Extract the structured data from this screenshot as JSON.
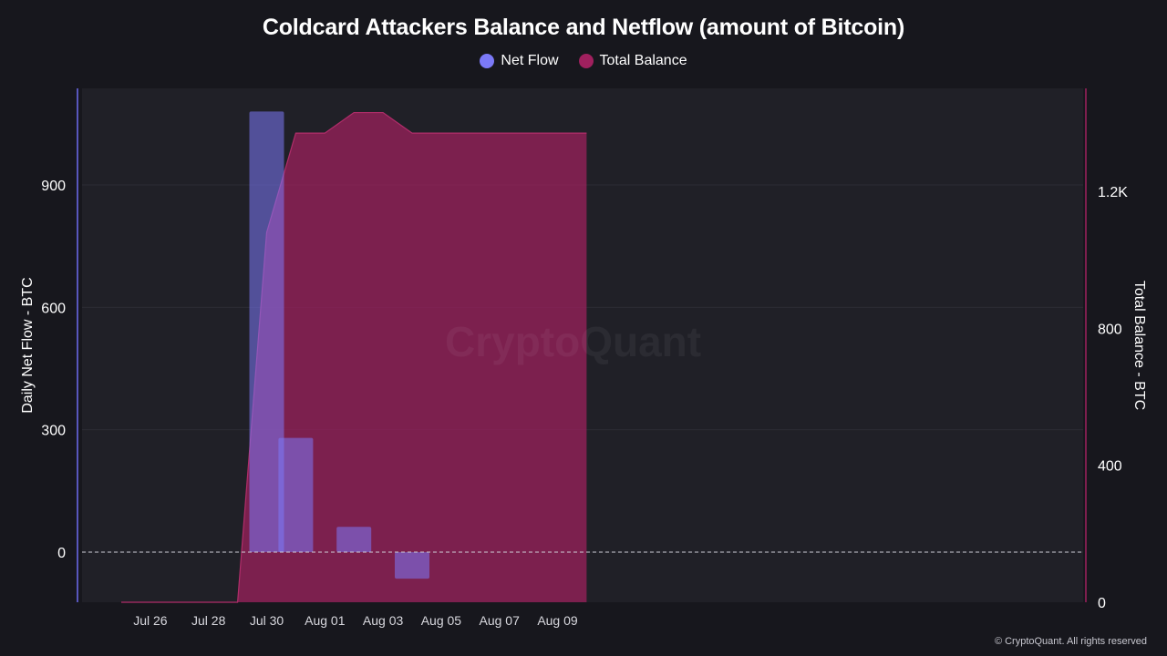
{
  "title": "Coldcard Attackers Balance and Netflow (amount of Bitcoin)",
  "legend": [
    {
      "label": "Net Flow",
      "color": "#7b79f7"
    },
    {
      "label": "Total Balance",
      "color": "#a0205e"
    }
  ],
  "watermark": "CryptoQuant",
  "copyright": "© CryptoQuant. All rights reserved",
  "chart_data": {
    "type": "bar+area",
    "title": "Coldcard Attackers Balance and Netflow (amount of Bitcoin)",
    "x_tick_labels": [
      "Jul 26",
      "Jul 28",
      "Jul 30",
      "Aug 01",
      "Aug 03",
      "Aug 05",
      "Aug 07",
      "Aug 09"
    ],
    "dates": [
      "Jul 25",
      "Jul 26",
      "Jul 27",
      "Jul 28",
      "Jul 29",
      "Jul 30",
      "Jul 31",
      "Aug 01",
      "Aug 02",
      "Aug 03",
      "Aug 04",
      "Aug 05",
      "Aug 06",
      "Aug 07",
      "Aug 08",
      "Aug 09",
      "Aug 10"
    ],
    "y_left": {
      "label": "Daily Net Flow - BTC",
      "ticks": [
        0,
        300,
        600,
        900
      ],
      "range": [
        -125,
        1210
      ]
    },
    "y_right": {
      "label": "Total Balance - BTC",
      "ticks": [
        "0",
        "400",
        "800",
        "1.2K"
      ],
      "tick_values": [
        0,
        400,
        800,
        1200
      ],
      "range": [
        0,
        1430
      ]
    },
    "series": [
      {
        "name": "Net Flow",
        "type": "bar",
        "axis": "left",
        "color": "#7b79f7",
        "points": [
          {
            "x": "Jul 30",
            "y": 1080
          },
          {
            "x": "Jul 31",
            "y": 280
          },
          {
            "x": "Aug 02",
            "y": 62
          },
          {
            "x": "Aug 04",
            "y": -65
          }
        ]
      },
      {
        "name": "Total Balance",
        "type": "area",
        "axis": "right",
        "color": "#a0205e",
        "points": [
          {
            "x": "Jul 25",
            "y": 0
          },
          {
            "x": "Jul 26",
            "y": 0
          },
          {
            "x": "Jul 27",
            "y": 0
          },
          {
            "x": "Jul 28",
            "y": 0
          },
          {
            "x": "Jul 29",
            "y": 0
          },
          {
            "x": "Jul 30",
            "y": 1080
          },
          {
            "x": "Jul 31",
            "y": 1370
          },
          {
            "x": "Aug 01",
            "y": 1370
          },
          {
            "x": "Aug 02",
            "y": 1430
          },
          {
            "x": "Aug 03",
            "y": 1430
          },
          {
            "x": "Aug 04",
            "y": 1370
          },
          {
            "x": "Aug 05",
            "y": 1370
          },
          {
            "x": "Aug 06",
            "y": 1370
          },
          {
            "x": "Aug 07",
            "y": 1370
          },
          {
            "x": "Aug 08",
            "y": 1370
          },
          {
            "x": "Aug 09",
            "y": 1370
          },
          {
            "x": "Aug 10",
            "y": 1370
          }
        ]
      }
    ],
    "zero_line": "dashed",
    "grid": true
  }
}
